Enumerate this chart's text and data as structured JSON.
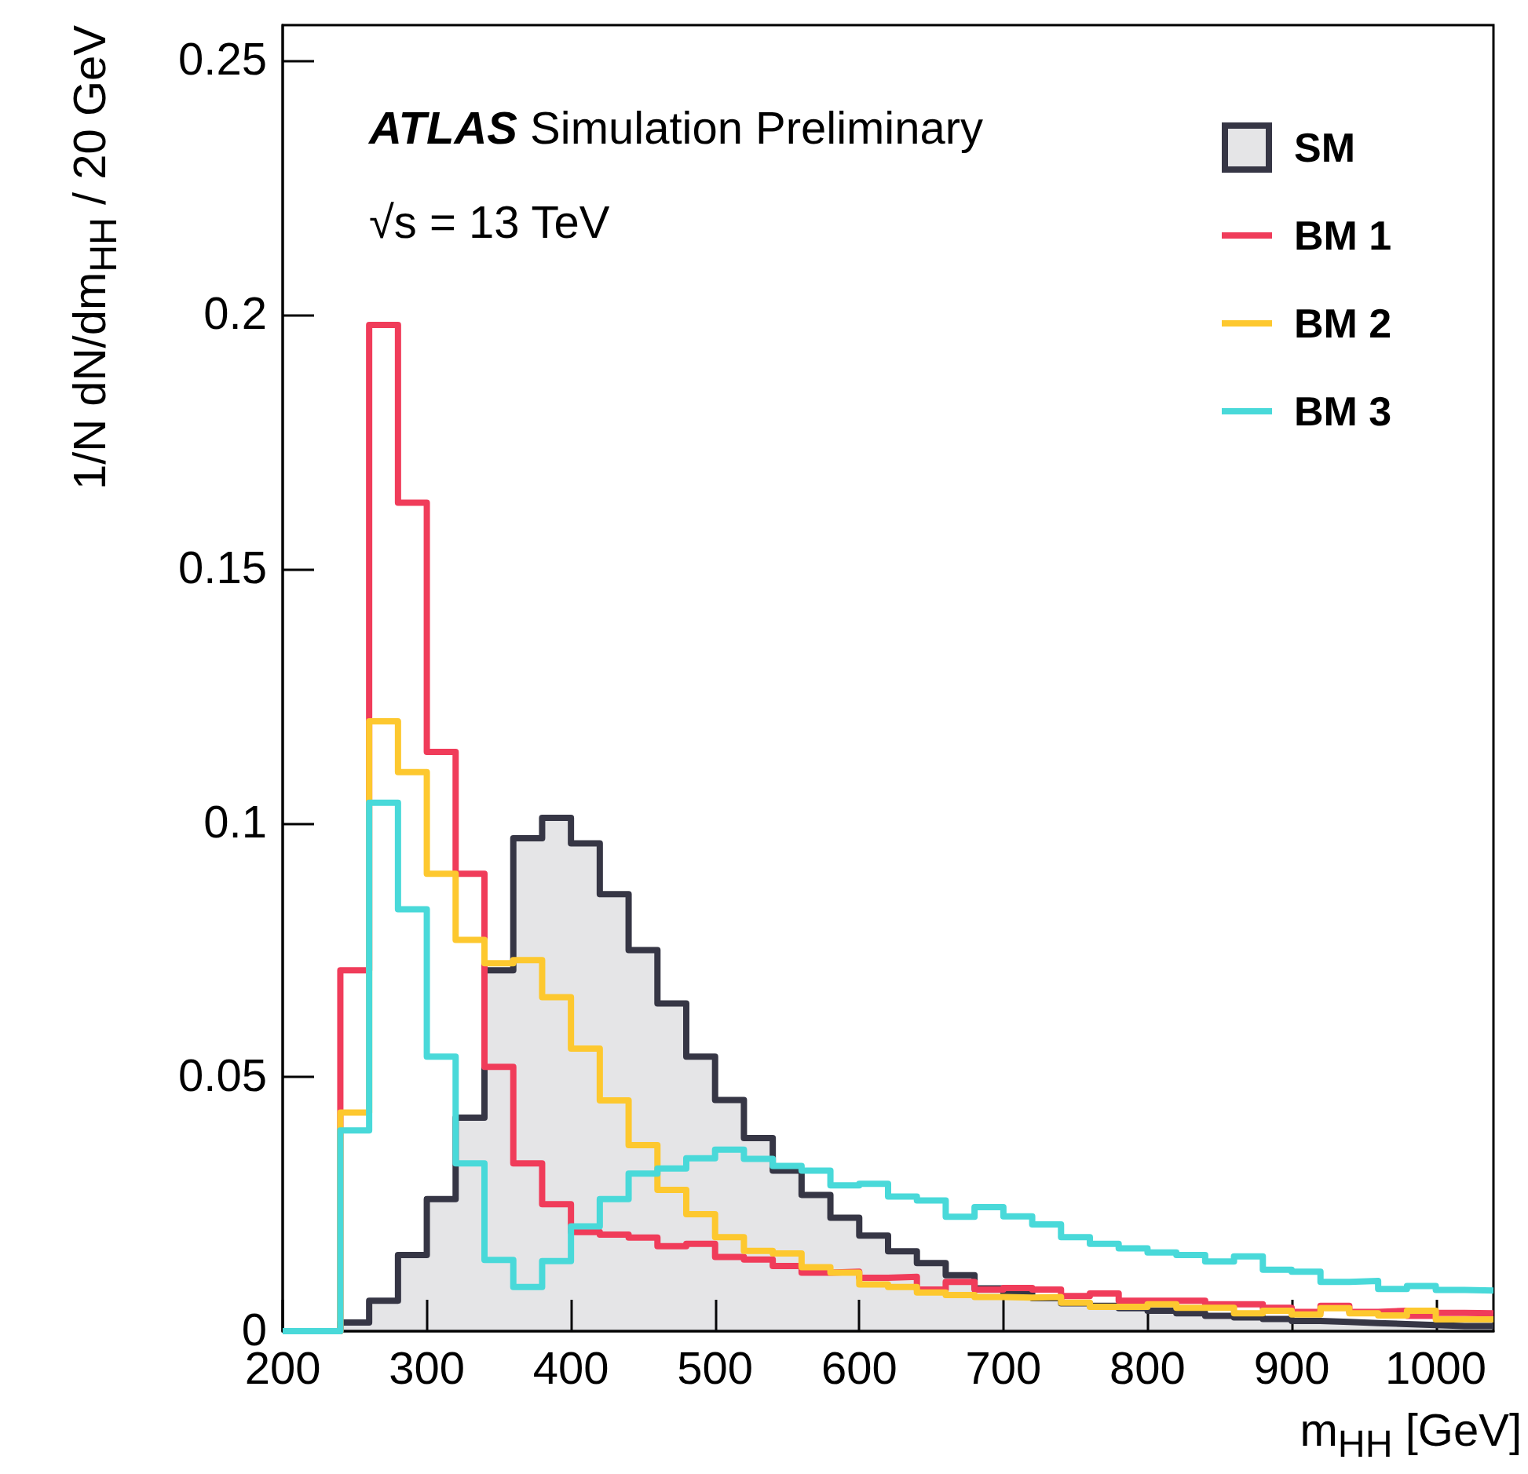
{
  "chart_data": {
    "type": "step",
    "xlabel": "m$_{HH}$ [GeV]",
    "ylabel": "1/N dN/dm$_{HH}$ / 20 GeV",
    "annotations": [
      "ATLAS Simulation Preliminary",
      "√s = 13 TeV"
    ],
    "x": [
      200,
      220,
      240,
      260,
      280,
      300,
      320,
      340,
      360,
      380,
      400,
      420,
      440,
      460,
      480,
      500,
      520,
      540,
      560,
      580,
      600,
      620,
      640,
      660,
      680,
      700,
      720,
      740,
      760,
      780,
      800,
      820,
      840,
      860,
      880,
      900,
      920,
      940,
      960,
      980,
      1000,
      1020,
      1040
    ],
    "series": [
      {
        "name": "SM",
        "type": "area",
        "color": "#363645",
        "values": [
          0,
          0,
          0.0017,
          0.006,
          0.015,
          0.026,
          0.042,
          0.071,
          0.097,
          0.101,
          0.096,
          0.086,
          0.075,
          0.0645,
          0.054,
          0.0455,
          0.038,
          0.0316,
          0.0268,
          0.0223,
          0.0188,
          0.0157,
          0.0134,
          0.011,
          0.0084,
          0.0075,
          0.0065,
          0.0055,
          0.005,
          0.0045,
          0.004,
          0.0035,
          0.003,
          0.0027,
          0.0024,
          0.002,
          0.0018,
          0.0016,
          0.0014,
          0.0012,
          0.001,
          0.001,
          0.001
        ]
      },
      {
        "name": "BM 1",
        "color": "#f03c5a",
        "values": [
          0,
          0,
          0.071,
          0.198,
          0.163,
          0.114,
          0.09,
          0.052,
          0.033,
          0.025,
          0.0195,
          0.019,
          0.0184,
          0.0167,
          0.0172,
          0.0146,
          0.0141,
          0.0128,
          0.0115,
          0.0117,
          0.0105,
          0.0107,
          0.0082,
          0.0097,
          0.0082,
          0.0085,
          0.0082,
          0.0069,
          0.0074,
          0.006,
          0.006,
          0.006,
          0.0053,
          0.0053,
          0.0046,
          0.0038,
          0.005,
          0.0038,
          0.004,
          0.003,
          0.0036,
          0.0035,
          0.0035
        ]
      },
      {
        "name": "BM 2",
        "color": "#fdc82f",
        "values": [
          0,
          0,
          0.043,
          0.12,
          0.11,
          0.09,
          0.077,
          0.0724,
          0.073,
          0.0657,
          0.0556,
          0.0454,
          0.0366,
          0.0278,
          0.023,
          0.0185,
          0.0158,
          0.0153,
          0.0126,
          0.0115,
          0.0092,
          0.0087,
          0.0076,
          0.0071,
          0.0067,
          0.0066,
          0.0067,
          0.0056,
          0.0048,
          0.0048,
          0.0053,
          0.0046,
          0.0046,
          0.0035,
          0.004,
          0.0033,
          0.0045,
          0.0035,
          0.0031,
          0.004,
          0.0023,
          0.0023,
          0.0023
        ]
      },
      {
        "name": "BM 3",
        "color": "#49d9d9",
        "values": [
          0,
          0,
          0.0395,
          0.104,
          0.083,
          0.054,
          0.033,
          0.014,
          0.0087,
          0.0138,
          0.0206,
          0.026,
          0.031,
          0.032,
          0.034,
          0.0357,
          0.0339,
          0.0325,
          0.0316,
          0.0287,
          0.029,
          0.0265,
          0.0257,
          0.0225,
          0.0244,
          0.0226,
          0.021,
          0.0185,
          0.0172,
          0.0163,
          0.0155,
          0.015,
          0.0137,
          0.0147,
          0.0121,
          0.0117,
          0.0097,
          0.0099,
          0.0083,
          0.0089,
          0.0081,
          0.008,
          0.008
        ]
      }
    ],
    "xlim": [
      200,
      1040
    ],
    "xticks": [
      200,
      300,
      400,
      500,
      600,
      700,
      800,
      900,
      1000
    ],
    "ylim": [
      0,
      0.257
    ],
    "yticks": [
      0,
      0.05,
      0.1,
      0.15,
      0.2,
      0.25
    ],
    "grid": false,
    "legend": "top right"
  }
}
